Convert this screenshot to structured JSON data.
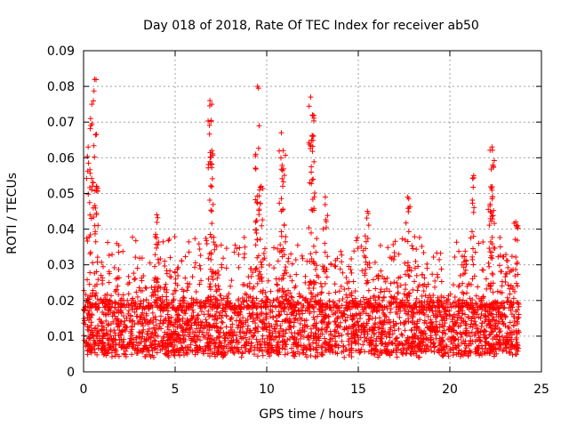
{
  "chart_data": {
    "type": "scatter",
    "title": "Day 018 of 2018, Rate Of TEC Index for receiver ab50",
    "xlabel": "GPS time / hours",
    "ylabel": "ROTI / TECUs",
    "xlim": [
      0,
      25
    ],
    "ylim": [
      0,
      0.09
    ],
    "xticks": [
      0,
      5,
      10,
      15,
      20,
      25
    ],
    "xtick_labels": [
      "0",
      "5",
      "10",
      "15",
      "20",
      "25"
    ],
    "yticks": [
      0,
      0.01,
      0.02,
      0.03,
      0.04,
      0.05,
      0.06,
      0.07,
      0.08,
      0.09
    ],
    "ytick_labels": [
      "0",
      "0.01",
      "0.02",
      "0.03",
      "0.04",
      "0.05",
      "0.06",
      "0.07",
      "0.08",
      "0.09"
    ],
    "grid": true,
    "marker": "plus",
    "color": "#ff0000",
    "series": [
      {
        "name": "ROTI",
        "baseline_band": [
          0.005,
          0.02
        ],
        "data_span_hours": [
          0.0,
          23.8
        ],
        "peaks": [
          {
            "x": 0.25,
            "y": 0.063
          },
          {
            "x": 0.45,
            "y": 0.075
          },
          {
            "x": 0.6,
            "y": 0.082
          },
          {
            "x": 0.7,
            "y": 0.052
          },
          {
            "x": 4.0,
            "y": 0.044
          },
          {
            "x": 6.9,
            "y": 0.076
          },
          {
            "x": 7.0,
            "y": 0.075
          },
          {
            "x": 7.0,
            "y": 0.062
          },
          {
            "x": 9.5,
            "y": 0.08
          },
          {
            "x": 9.4,
            "y": 0.061
          },
          {
            "x": 9.7,
            "y": 0.052
          },
          {
            "x": 10.8,
            "y": 0.067
          },
          {
            "x": 10.9,
            "y": 0.062
          },
          {
            "x": 12.4,
            "y": 0.077
          },
          {
            "x": 12.5,
            "y": 0.072
          },
          {
            "x": 12.5,
            "y": 0.066
          },
          {
            "x": 13.2,
            "y": 0.049
          },
          {
            "x": 15.5,
            "y": 0.045
          },
          {
            "x": 17.7,
            "y": 0.049
          },
          {
            "x": 21.3,
            "y": 0.055
          },
          {
            "x": 22.3,
            "y": 0.063
          },
          {
            "x": 22.35,
            "y": 0.058
          },
          {
            "x": 22.2,
            "y": 0.047
          },
          {
            "x": 23.6,
            "y": 0.042
          }
        ]
      }
    ]
  }
}
